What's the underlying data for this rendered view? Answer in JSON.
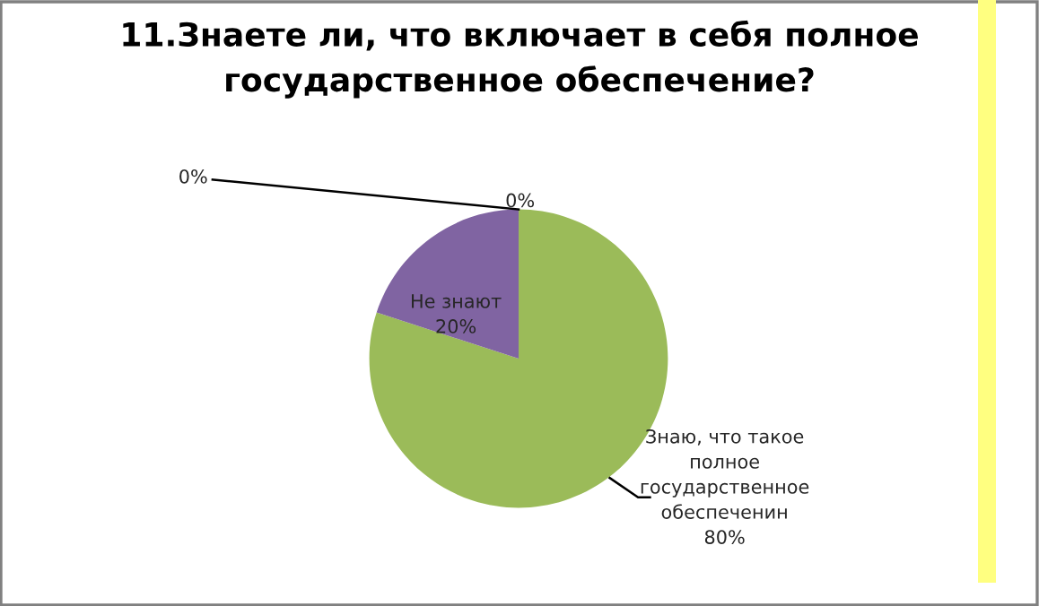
{
  "chart_data": {
    "type": "pie",
    "title": "11.Знаете ли, что включает в себя полное\nгосударственное обеспечение?",
    "categories": [
      "Знаю, что такое\nполное\nгосударственное\nобеспеченин",
      "Не знают",
      null,
      null
    ],
    "values": [
      80,
      20,
      0,
      0
    ],
    "colors": [
      "#9bbb59",
      "#8064a2",
      "#4f81bd",
      "#c0504d"
    ],
    "value_labels": [
      "80%",
      "20%",
      "0%",
      "0%"
    ],
    "legend": false
  }
}
